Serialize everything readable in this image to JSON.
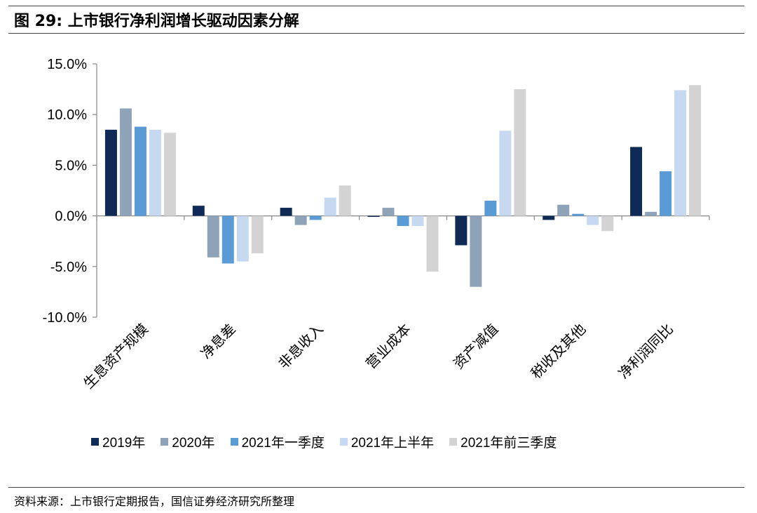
{
  "title": "图 29:  上市银行净利润增长驱动因素分解",
  "source": "资料来源：上市银行定期报告，国信证券经济研究所整理",
  "colors": {
    "s2019": "#0e2a55",
    "s2020": "#8fa3b8",
    "s2021q1": "#5b9bd5",
    "s2021h1": "#c6d9f0",
    "s2021q3": "#d3d3d3"
  },
  "chart_data": {
    "type": "bar",
    "title": "",
    "xlabel": "",
    "ylabel": "",
    "ylim": [
      -10,
      15
    ],
    "yticks": [
      -10,
      -5,
      0,
      5,
      10,
      15
    ],
    "ytick_labels": [
      "-10.0%",
      "-5.0%",
      "0.0%",
      "5.0%",
      "10.0%",
      "15.0%"
    ],
    "categories": [
      "生息资产规模",
      "净息差",
      "非息收入",
      "营业成本",
      "资产减值",
      "税收及其他",
      "净利润同比"
    ],
    "series": [
      {
        "name": "2019年",
        "color_key": "s2019",
        "values": [
          8.5,
          1.0,
          0.8,
          -0.1,
          -2.9,
          -0.4,
          6.8
        ]
      },
      {
        "name": "2020年",
        "color_key": "s2020",
        "values": [
          10.6,
          -4.1,
          -0.9,
          0.8,
          -7.0,
          1.1,
          0.4
        ]
      },
      {
        "name": "2021年一季度",
        "color_key": "s2021q1",
        "values": [
          8.8,
          -4.7,
          -0.4,
          -1.0,
          1.5,
          0.2,
          4.4
        ]
      },
      {
        "name": "2021年上半年",
        "color_key": "s2021h1",
        "values": [
          8.5,
          -4.5,
          1.8,
          -1.0,
          8.4,
          -0.9,
          12.4
        ]
      },
      {
        "name": "2021年前三季度",
        "color_key": "s2021q3",
        "values": [
          8.2,
          -3.7,
          3.0,
          -5.5,
          12.5,
          -1.5,
          12.9
        ]
      }
    ],
    "legend_position": "bottom"
  }
}
